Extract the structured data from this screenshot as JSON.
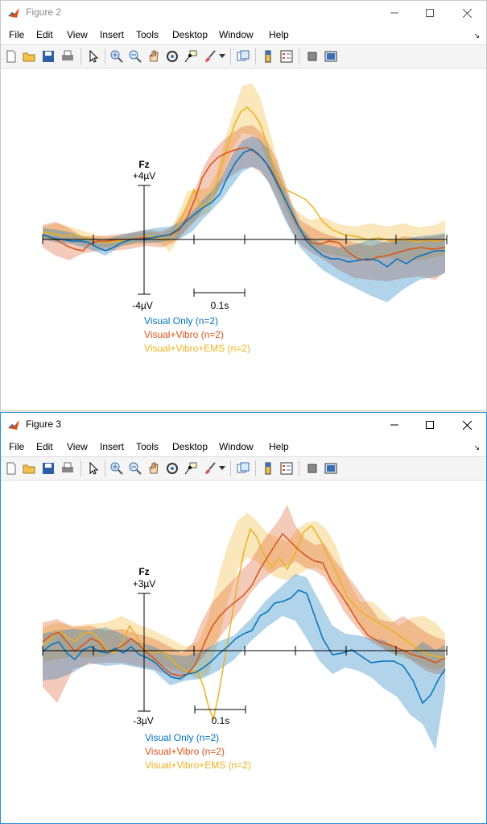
{
  "menu_items": [
    "File",
    "Edit",
    "View",
    "Insert",
    "Tools",
    "Desktop",
    "Window",
    "Help"
  ],
  "colors": {
    "visual_only": "#0072BD",
    "visual_vibro": "#D95319",
    "visual_vibro_ems": "#EDB120"
  },
  "toolbar_icons": [
    "new-figure-icon",
    "open-file-icon",
    "save-icon",
    "print-icon",
    "pointer-icon",
    "zoom-in-icon",
    "zoom-out-icon",
    "pan-icon",
    "rotate-icon",
    "data-cursor-icon",
    "brush-icon",
    "brush-dropdown-icon",
    "link-plot-icon",
    "colorbar-icon",
    "legend-icon",
    "hide-plot-tools-icon",
    "show-plot-tools-icon"
  ],
  "windows": [
    {
      "title": "Figure 2",
      "plot": {
        "channel": "Fz",
        "top_label": "+4µV",
        "bottom_label": "-4µV",
        "time_label": "0.1s",
        "legend": [
          "Visual Only (n=2)",
          "Visual+Vibro (n=2)",
          "Visual+Vibro+EMS (n=2)"
        ]
      }
    },
    {
      "title": "Figure 3",
      "plot": {
        "channel": "Fz",
        "top_label": "+3µV",
        "bottom_label": "-3µV",
        "time_label": "0.1s",
        "legend": [
          "Visual Only (n=2)",
          "Visual+Vibro (n=2)",
          "Visual+Vibro+EMS (n=2)"
        ]
      }
    }
  ]
}
